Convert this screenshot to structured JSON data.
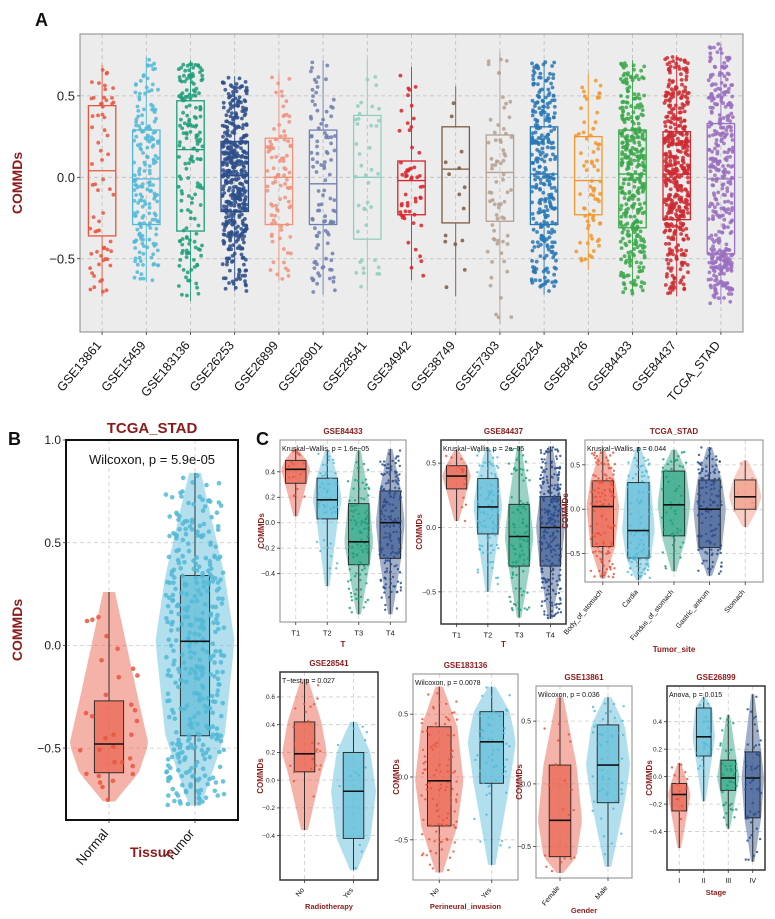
{
  "panel_labels": {
    "a": "A",
    "b": "B",
    "c": "C"
  },
  "chart_data": [
    {
      "id": "A",
      "type": "box",
      "title": "",
      "xlabel": "",
      "ylabel": "COMMDs",
      "ylim": [
        -0.95,
        0.88
      ],
      "yticks": [
        -0.5,
        0.0,
        0.5
      ],
      "ytick_labels": [
        "−0.5",
        "0.0",
        "0.5"
      ],
      "grid": true,
      "categories": [
        "GSE13861",
        "GSE15459",
        "GSE183136",
        "GSE26253",
        "GSE26899",
        "GSE26901",
        "GSE28541",
        "GSE34942",
        "GSE38749",
        "GSE57303",
        "GSE62254",
        "GSE84426",
        "GSE84433",
        "GSE84437",
        "TCGA_STAD"
      ],
      "colors": [
        "#e8553d",
        "#52b8d6",
        "#1e9e7a",
        "#2d4e8a",
        "#f0927c",
        "#6f7fb0",
        "#8fcfbf",
        "#d8252b",
        "#7e5a40",
        "#b5a090",
        "#2878b5",
        "#f0982e",
        "#3aa84a",
        "#cc2a30",
        "#9a6ec0"
      ],
      "boxes": [
        {
          "name": "GSE13861",
          "q1": -0.36,
          "median": 0.04,
          "q3": 0.44,
          "min": -0.73,
          "max": 0.69,
          "n": 65
        },
        {
          "name": "GSE15459",
          "q1": -0.29,
          "median": -0.01,
          "q3": 0.29,
          "min": -0.64,
          "max": 0.74,
          "n": 190
        },
        {
          "name": "GSE183136",
          "q1": -0.33,
          "median": 0.17,
          "q3": 0.47,
          "min": -0.76,
          "max": 0.72,
          "n": 170
        },
        {
          "name": "GSE26253",
          "q1": -0.21,
          "median": 0.01,
          "q3": 0.22,
          "min": -0.7,
          "max": 0.62,
          "n": 430
        },
        {
          "name": "GSE26899",
          "q1": -0.29,
          "median": -0.0,
          "q3": 0.24,
          "min": -0.63,
          "max": 0.64,
          "n": 95
        },
        {
          "name": "GSE26901",
          "q1": -0.29,
          "median": -0.04,
          "q3": 0.29,
          "min": -0.72,
          "max": 0.72,
          "n": 105
        },
        {
          "name": "GSE28541",
          "q1": -0.38,
          "median": -0.0,
          "q3": 0.38,
          "min": -0.7,
          "max": 0.73,
          "n": 40
        },
        {
          "name": "GSE34942",
          "q1": -0.23,
          "median": -0.02,
          "q3": 0.1,
          "min": -0.63,
          "max": 0.68,
          "n": 55
        },
        {
          "name": "GSE38749",
          "q1": -0.28,
          "median": 0.05,
          "q3": 0.31,
          "min": -0.73,
          "max": 0.56,
          "n": 15
        },
        {
          "name": "GSE57303",
          "q1": -0.27,
          "median": 0.03,
          "q3": 0.26,
          "min": -0.9,
          "max": 0.77,
          "n": 70
        },
        {
          "name": "GSE62254",
          "q1": -0.29,
          "median": 0.02,
          "q3": 0.31,
          "min": -0.72,
          "max": 0.72,
          "n": 300
        },
        {
          "name": "GSE84426",
          "q1": -0.23,
          "median": -0.02,
          "q3": 0.25,
          "min": -0.57,
          "max": 0.64,
          "n": 75
        },
        {
          "name": "GSE84433",
          "q1": -0.31,
          "median": 0.02,
          "q3": 0.29,
          "min": -0.72,
          "max": 0.72,
          "n": 357
        },
        {
          "name": "GSE84437",
          "q1": -0.26,
          "median": 0.02,
          "q3": 0.28,
          "min": -0.73,
          "max": 0.75,
          "n": 433
        },
        {
          "name": "TCGA_STAD",
          "q1": -0.47,
          "median": -0.01,
          "q3": 0.33,
          "min": -0.78,
          "max": 0.82,
          "n": 375
        }
      ]
    },
    {
      "id": "B",
      "type": "violin_box",
      "title": "TCGA_STAD",
      "xlabel": "Tissue",
      "ylabel": "COMMDs",
      "annotation": "Wilcoxon, p = 5.9e-05",
      "ylim": [
        -0.85,
        1.0
      ],
      "yticks": [
        -0.5,
        0.0,
        0.5,
        1.0
      ],
      "ytick_labels": [
        "−0.5",
        "0.0",
        "0.5",
        "1.0"
      ],
      "grid": true,
      "categories": [
        "Normal",
        "Tumor"
      ],
      "colors": [
        "#e8553d",
        "#52b8d6"
      ],
      "boxes": [
        {
          "name": "Normal",
          "q1": -0.62,
          "median": -0.48,
          "q3": -0.27,
          "min": -0.76,
          "max": 0.26,
          "n": 32
        },
        {
          "name": "Tumor",
          "q1": -0.44,
          "median": 0.02,
          "q3": 0.34,
          "min": -0.78,
          "max": 0.84,
          "n": 375
        }
      ]
    },
    {
      "id": "C1",
      "type": "violin_box",
      "title": "GSE84433",
      "xlabel": "T",
      "ylabel": "COMMDs",
      "annotation": "Kruskal−Wallis, p = 1.6e−05",
      "ylim": [
        -0.78,
        0.65
      ],
      "yticks": [
        -0.4,
        -0.2,
        0.0,
        0.2,
        0.4
      ],
      "ytick_labels": [
        "−0.4",
        "−0.2",
        "0.0",
        "0.2",
        "0.4"
      ],
      "grid": true,
      "categories": [
        "T1",
        "T2",
        "T3",
        "T4"
      ],
      "colors": [
        "#e8553d",
        "#52b8d6",
        "#1e9e7a",
        "#2d4e8a"
      ],
      "boxes": [
        {
          "name": "T1",
          "q1": 0.31,
          "median": 0.42,
          "q3": 0.49,
          "min": 0.05,
          "max": 0.58,
          "n": 15
        },
        {
          "name": "T2",
          "q1": 0.03,
          "median": 0.18,
          "q3": 0.35,
          "min": -0.5,
          "max": 0.57,
          "n": 45
        },
        {
          "name": "T3",
          "q1": -0.33,
          "median": -0.15,
          "q3": 0.15,
          "min": -0.72,
          "max": 0.57,
          "n": 110
        },
        {
          "name": "T4",
          "q1": -0.28,
          "median": 0.0,
          "q3": 0.25,
          "min": -0.72,
          "max": 0.58,
          "n": 180
        }
      ]
    },
    {
      "id": "C2",
      "type": "violin_box",
      "title": "GSE84437",
      "xlabel": "T",
      "ylabel": "COMMDs",
      "annotation": "Kruskal−Wallis, p = 2e−05",
      "ylim": [
        -0.75,
        0.68
      ],
      "yticks": [
        -0.5,
        0.0,
        0.5
      ],
      "ytick_labels": [
        "−0.5",
        "0.0",
        "0.5"
      ],
      "grid": true,
      "categories": [
        "T1",
        "T2",
        "T3",
        "T4"
      ],
      "colors": [
        "#e8553d",
        "#52b8d6",
        "#1e9e7a",
        "#2d4e8a"
      ],
      "boxes": [
        {
          "name": "T1",
          "q1": 0.3,
          "median": 0.4,
          "q3": 0.48,
          "min": 0.05,
          "max": 0.6,
          "n": 15
        },
        {
          "name": "T2",
          "q1": -0.05,
          "median": 0.16,
          "q3": 0.38,
          "min": -0.5,
          "max": 0.62,
          "n": 90
        },
        {
          "name": "T3",
          "q1": -0.3,
          "median": -0.07,
          "q3": 0.18,
          "min": -0.7,
          "max": 0.63,
          "n": 95
        },
        {
          "name": "T4",
          "q1": -0.3,
          "median": 0.0,
          "q3": 0.24,
          "min": -0.71,
          "max": 0.63,
          "n": 290
        }
      ]
    },
    {
      "id": "C3",
      "type": "violin_box",
      "title": "TCGA_STAD",
      "xlabel": "Tumor_site",
      "ylabel": "COMMDs",
      "annotation": "Kruskal−Wallis, p = 0.044",
      "ylim": [
        -0.82,
        0.78
      ],
      "yticks": [
        -0.5,
        0.0,
        0.5
      ],
      "ytick_labels": [
        "−0.5",
        "0.0",
        "0.5"
      ],
      "grid": true,
      "categories": [
        "Body_of_stomach",
        "Cardia",
        "Fundus_of_stomach",
        "Gastric_antrum",
        "Stomach"
      ],
      "colors": [
        "#e8553d",
        "#52b8d6",
        "#1e9e7a",
        "#2d4e8a",
        "#f0927c"
      ],
      "boxes": [
        {
          "name": "Body_of_stomach",
          "q1": -0.42,
          "median": 0.03,
          "q3": 0.32,
          "min": -0.78,
          "max": 0.66,
          "n": 130
        },
        {
          "name": "Cardia",
          "q1": -0.55,
          "median": -0.24,
          "q3": 0.3,
          "min": -0.8,
          "max": 0.7,
          "n": 95
        },
        {
          "name": "Fundus_of_stomach",
          "q1": -0.3,
          "median": 0.05,
          "q3": 0.43,
          "min": -0.7,
          "max": 0.67,
          "n": 50
        },
        {
          "name": "Gastric_antrum",
          "q1": -0.43,
          "median": 0.0,
          "q3": 0.33,
          "min": -0.75,
          "max": 0.7,
          "n": 140
        },
        {
          "name": "Stomach",
          "q1": 0.0,
          "median": 0.14,
          "q3": 0.33,
          "min": -0.2,
          "max": 0.55,
          "n": 6
        }
      ]
    },
    {
      "id": "C4",
      "type": "violin_box",
      "title": "GSE28541",
      "xlabel": "Radiotherapy",
      "ylabel": "COMMDs",
      "annotation": "T−test, p = 0.027",
      "ylim": [
        -0.72,
        0.78
      ],
      "yticks": [
        -0.4,
        -0.2,
        0.0,
        0.2,
        0.4,
        0.6
      ],
      "ytick_labels": [
        "−0.4",
        "−0.2",
        "0.0",
        "0.2",
        "0.4",
        "0.6"
      ],
      "grid": true,
      "categories": [
        "No",
        "Yes"
      ],
      "colors": [
        "#e8553d",
        "#52b8d6"
      ],
      "boxes": [
        {
          "name": "No",
          "q1": 0.06,
          "median": 0.19,
          "q3": 0.42,
          "min": -0.36,
          "max": 0.73,
          "n": 25
        },
        {
          "name": "Yes",
          "q1": -0.42,
          "median": -0.08,
          "q3": 0.2,
          "min": -0.65,
          "max": 0.42,
          "n": 14
        }
      ]
    },
    {
      "id": "C5",
      "type": "violin_box",
      "title": "GSE183136",
      "xlabel": "Perineural_invasion",
      "ylabel": "COMMDs",
      "annotation": "Wilcoxon, p = 0.0078",
      "ylim": [
        -0.82,
        0.82
      ],
      "yticks": [
        -0.5,
        0.0,
        0.5
      ],
      "ytick_labels": [
        "−0.5",
        "0.0",
        "0.5"
      ],
      "grid": true,
      "categories": [
        "No",
        "Yes"
      ],
      "colors": [
        "#e8553d",
        "#52b8d6"
      ],
      "boxes": [
        {
          "name": "No",
          "q1": -0.39,
          "median": -0.03,
          "q3": 0.4,
          "min": -0.76,
          "max": 0.72,
          "n": 110
        },
        {
          "name": "Yes",
          "q1": -0.05,
          "median": 0.28,
          "q3": 0.52,
          "min": -0.7,
          "max": 0.72,
          "n": 55
        }
      ]
    },
    {
      "id": "C6",
      "type": "violin_box",
      "title": "GSE13861",
      "xlabel": "Gender",
      "ylabel": "COMMDs",
      "annotation": "Wilcoxon, p = 0.036",
      "ylim": [
        -0.75,
        0.78
      ],
      "yticks": [
        -0.5,
        0.0,
        0.5
      ],
      "ytick_labels": [
        "−0.5",
        "0.0",
        "0.5"
      ],
      "grid": true,
      "categories": [
        "Female",
        "Male"
      ],
      "colors": [
        "#e8553d",
        "#52b8d6"
      ],
      "boxes": [
        {
          "name": "Female",
          "q1": -0.58,
          "median": -0.29,
          "q3": 0.15,
          "min": -0.71,
          "max": 0.69,
          "n": 20
        },
        {
          "name": "Male",
          "q1": -0.15,
          "median": 0.15,
          "q3": 0.47,
          "min": -0.66,
          "max": 0.69,
          "n": 45
        }
      ]
    },
    {
      "id": "C7",
      "type": "violin_box",
      "title": "GSE26899",
      "xlabel": "Stage",
      "ylabel": "COMMDs",
      "annotation": "Anova, p = 0.015",
      "ylim": [
        -0.68,
        0.66
      ],
      "yticks": [
        -0.4,
        -0.2,
        0.0,
        0.2,
        0.4
      ],
      "ytick_labels": [
        "−0.4",
        "−0.2",
        "0.0",
        "0.2",
        "0.4"
      ],
      "grid": true,
      "categories": [
        "I",
        "II",
        "III",
        "IV"
      ],
      "colors": [
        "#e8553d",
        "#52b8d6",
        "#1e9e7a",
        "#2d4e8a"
      ],
      "boxes": [
        {
          "name": "I",
          "q1": -0.25,
          "median": -0.13,
          "q3": -0.05,
          "min": -0.52,
          "max": 0.1,
          "n": 15
        },
        {
          "name": "II",
          "q1": 0.15,
          "median": 0.29,
          "q3": 0.5,
          "min": -0.18,
          "max": 0.58,
          "n": 20
        },
        {
          "name": "III",
          "q1": -0.1,
          "median": -0.01,
          "q3": 0.12,
          "min": -0.38,
          "max": 0.45,
          "n": 40
        },
        {
          "name": "IV",
          "q1": -0.3,
          "median": -0.01,
          "q3": 0.18,
          "min": -0.62,
          "max": 0.6,
          "n": 50
        }
      ]
    }
  ]
}
